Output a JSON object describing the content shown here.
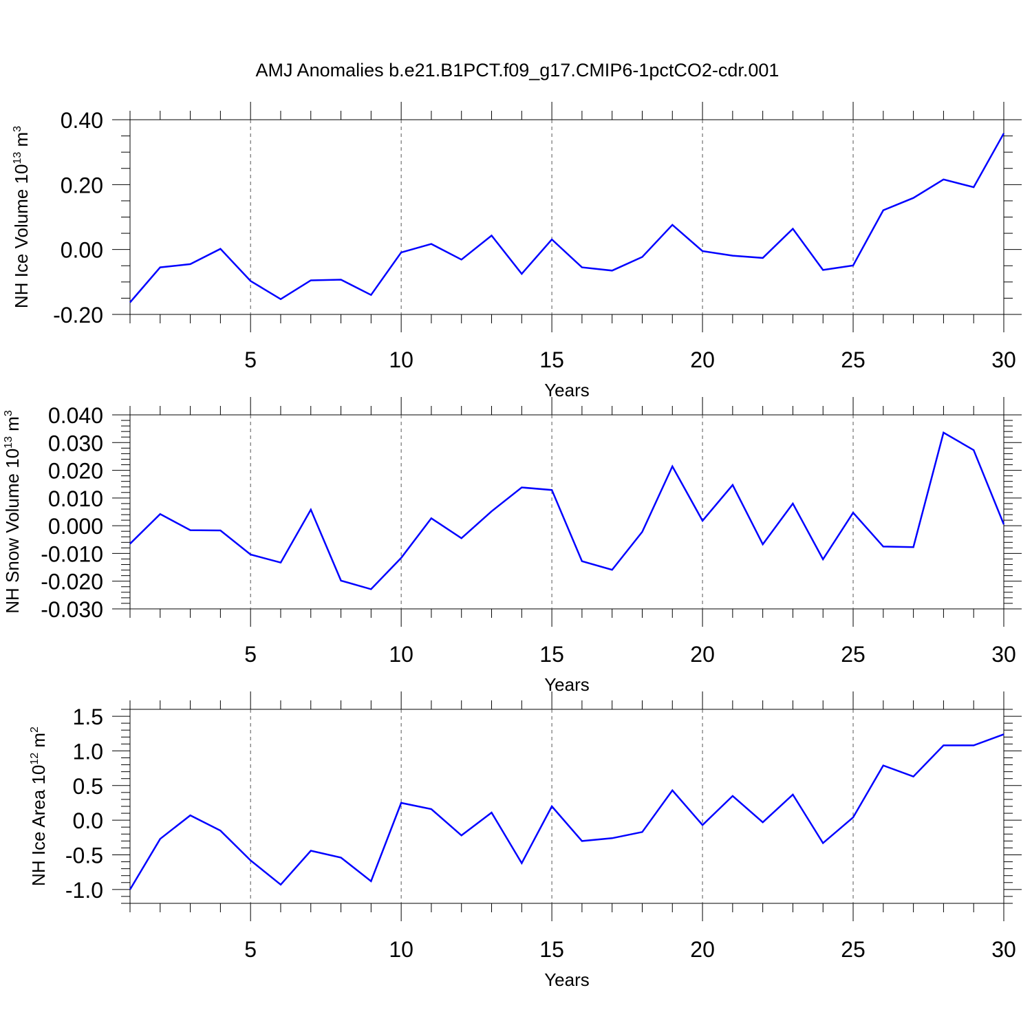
{
  "title": "AMJ Anomalies b.e21.B1PCT.f09_g17.CMIP6-1pctCO2-cdr.001",
  "line_color": "#0000ff",
  "chart_data": [
    {
      "type": "line",
      "ylabel": "NH Ice Volume 10",
      "ylabel_exp": "13",
      "ylabel_unit": " m",
      "ylabel_unit_exp": "3",
      "xlabel": "Years",
      "xlim": [
        1,
        30
      ],
      "ylim": [
        -0.2,
        0.4
      ],
      "x_ticks": [
        "5",
        "10",
        "15",
        "20",
        "25",
        "30"
      ],
      "y_ticks": [
        "0.40",
        "0.20",
        "0.00",
        "-0.20"
      ],
      "grid": "vertical dashed at 5, 10, 15, 20, 25",
      "x": [
        1,
        2,
        3,
        4,
        5,
        6,
        7,
        8,
        9,
        10,
        11,
        12,
        13,
        14,
        15,
        16,
        17,
        18,
        19,
        20,
        21,
        22,
        23,
        24,
        25,
        26,
        27,
        28,
        29,
        30
      ],
      "values": [
        -0.163,
        -0.055,
        -0.045,
        0.002,
        -0.097,
        -0.153,
        -0.095,
        -0.093,
        -0.14,
        -0.009,
        0.017,
        -0.031,
        0.043,
        -0.075,
        0.031,
        -0.055,
        -0.065,
        -0.023,
        0.076,
        -0.005,
        -0.019,
        -0.026,
        0.064,
        -0.063,
        -0.049,
        0.121,
        0.159,
        0.216,
        0.192,
        0.358
      ]
    },
    {
      "type": "line",
      "ylabel": "NH Snow Volume 10",
      "ylabel_exp": "13",
      "ylabel_unit": " m",
      "ylabel_unit_exp": "3",
      "xlabel": "Years",
      "xlim": [
        1,
        30
      ],
      "ylim": [
        -0.03,
        0.04
      ],
      "x_ticks": [
        "5",
        "10",
        "15",
        "20",
        "25",
        "30"
      ],
      "y_ticks": [
        "0.040",
        "0.030",
        "0.020",
        "0.010",
        "0.000",
        "-0.010",
        "-0.020",
        "-0.030"
      ],
      "grid": "vertical dashed at 5, 10, 15, 20, 25",
      "x": [
        1,
        2,
        3,
        4,
        5,
        6,
        7,
        8,
        9,
        10,
        11,
        12,
        13,
        14,
        15,
        16,
        17,
        18,
        19,
        20,
        21,
        22,
        23,
        24,
        25,
        26,
        27,
        28,
        29,
        30
      ],
      "values": [
        -0.0065,
        0.0042,
        -0.0016,
        -0.0017,
        -0.0104,
        -0.0133,
        0.0058,
        -0.0198,
        -0.0229,
        -0.0116,
        0.0027,
        -0.0045,
        0.0052,
        0.0138,
        0.0129,
        -0.0128,
        -0.0159,
        -0.0022,
        0.0214,
        0.0018,
        0.0147,
        -0.0067,
        0.008,
        -0.0121,
        0.0047,
        -0.0075,
        -0.0077,
        0.0336,
        0.0273,
        0.0005
      ]
    },
    {
      "type": "line",
      "ylabel": "NH Ice Area 10",
      "ylabel_exp": "12",
      "ylabel_unit": " m",
      "ylabel_unit_exp": "2",
      "xlabel": "Years",
      "xlim": [
        1,
        30
      ],
      "ylim": [
        -1.2,
        1.6
      ],
      "x_ticks": [
        "5",
        "10",
        "15",
        "20",
        "25",
        "30"
      ],
      "y_ticks": [
        "1.5",
        "1.0",
        "0.5",
        "0.0",
        "-0.5",
        "-1.0"
      ],
      "grid": "vertical dashed at 5, 10, 15, 20, 25",
      "x": [
        1,
        2,
        3,
        4,
        5,
        6,
        7,
        8,
        9,
        10,
        11,
        12,
        13,
        14,
        15,
        16,
        17,
        18,
        19,
        20,
        21,
        22,
        23,
        24,
        25,
        26,
        27,
        28,
        29,
        30
      ],
      "values": [
        -1.0,
        -0.27,
        0.07,
        -0.15,
        -0.58,
        -0.93,
        -0.44,
        -0.54,
        -0.88,
        0.25,
        0.16,
        -0.22,
        0.11,
        -0.62,
        0.2,
        -0.3,
        -0.26,
        -0.17,
        0.43,
        -0.07,
        0.35,
        -0.03,
        0.37,
        -0.33,
        0.04,
        0.79,
        0.63,
        1.08,
        1.08,
        1.24
      ]
    }
  ]
}
